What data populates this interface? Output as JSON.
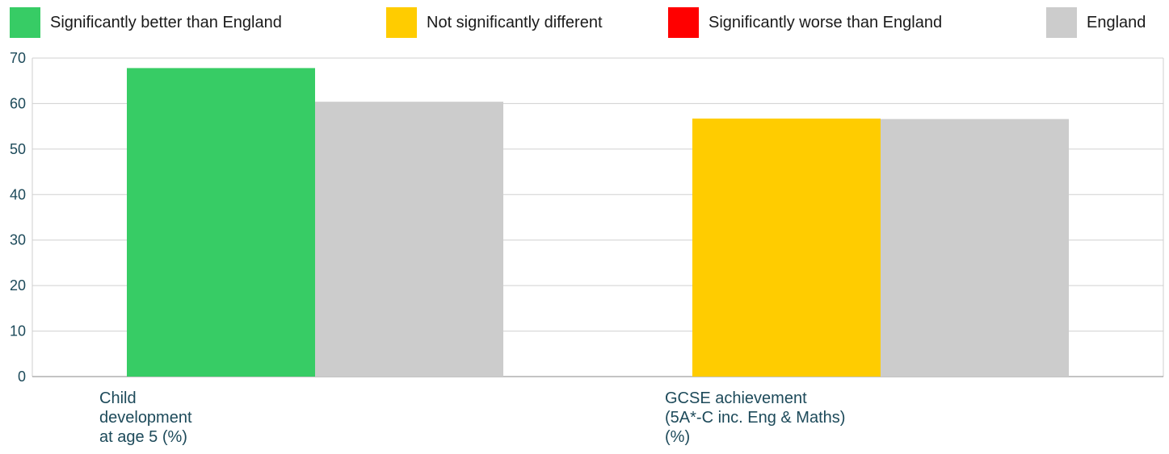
{
  "legend": [
    {
      "label": "Significantly better than England",
      "color": "#37cc65"
    },
    {
      "label": "Not significantly different",
      "color": "#ffcc00"
    },
    {
      "label": "Significantly worse than England",
      "color": "#ff0000"
    },
    {
      "label": "England",
      "color": "#cccccc"
    }
  ],
  "chart_data": {
    "type": "bar",
    "categories": [
      [
        "Child",
        "development",
        "at age 5 (%)"
      ],
      [
        "GCSE achievement",
        "(5A*-C inc. Eng & Maths)",
        "(%)"
      ]
    ],
    "series": [
      {
        "values": [
          67.8,
          56.7
        ],
        "colors": [
          "#37cc65",
          "#ffcc00"
        ]
      },
      {
        "name": "England",
        "values": [
          60.4,
          56.6
        ],
        "colors": [
          "#cccccc",
          "#cccccc"
        ]
      }
    ],
    "ylim": [
      0,
      70
    ],
    "yticks": [
      0,
      10,
      20,
      30,
      40,
      50,
      60,
      70
    ],
    "grid": true,
    "legend_position": "top"
  }
}
